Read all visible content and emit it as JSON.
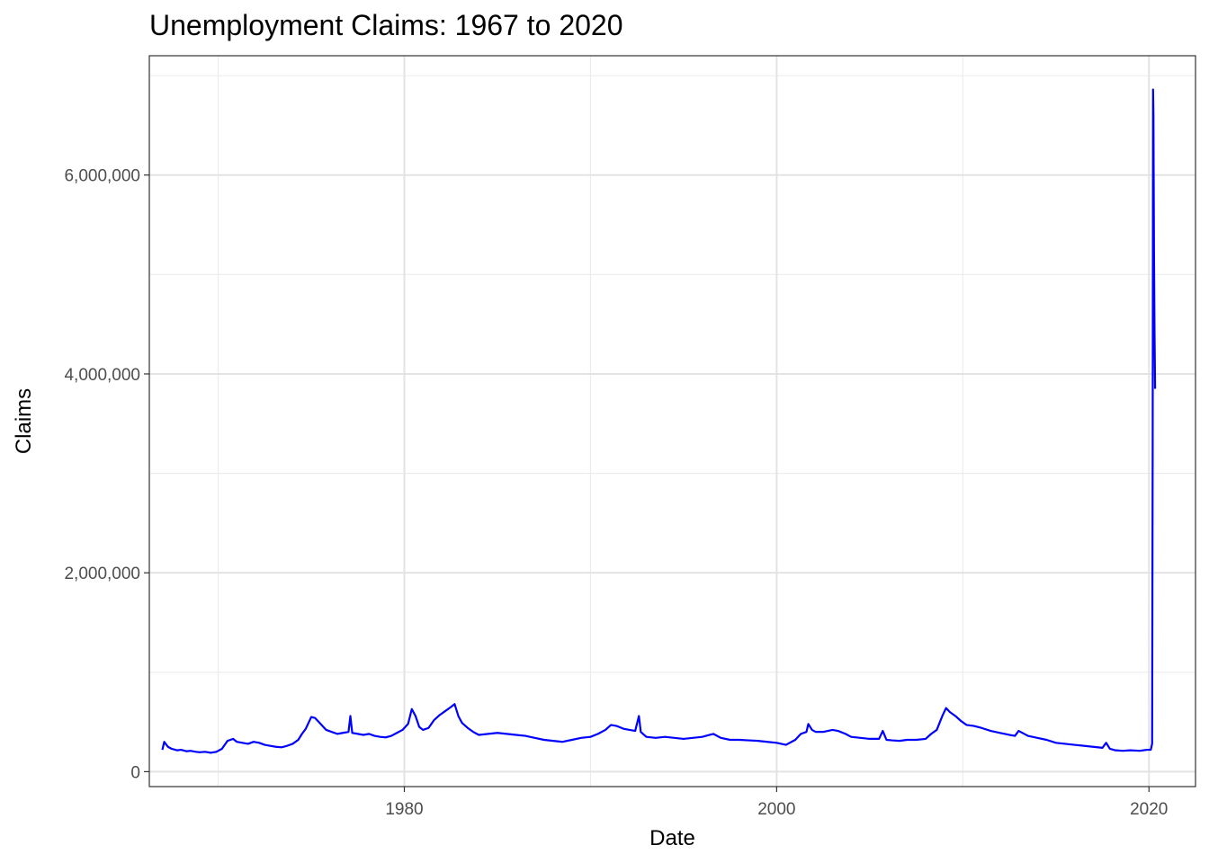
{
  "chart_data": {
    "type": "line",
    "title": "Unemployment Claims: 1967 to 2020",
    "xlabel": "Date",
    "ylabel": "Claims",
    "x_ticks": [
      "1980",
      "2000",
      "2020"
    ],
    "y_ticks": [
      "0",
      "2,000,000",
      "4,000,000",
      "6,000,000"
    ],
    "xlim": [
      1966.3,
      2022.5
    ],
    "ylim": [
      -150000,
      7200000
    ],
    "grid": true,
    "legend": "none",
    "line_color": "#0000ff",
    "series": [
      {
        "x": [
          1967.0,
          1967.1,
          1967.3,
          1967.5,
          1967.8,
          1968.0,
          1968.3,
          1968.5,
          1968.8,
          1969.0,
          1969.3,
          1969.6,
          1969.9,
          1970.2,
          1970.5,
          1970.8,
          1971.0,
          1971.3,
          1971.6,
          1971.9,
          1972.2,
          1972.5,
          1972.8,
          1973.1,
          1973.4,
          1973.7,
          1974.0,
          1974.3,
          1974.5,
          1974.7,
          1975.0,
          1975.2,
          1975.5,
          1975.8,
          1976.1,
          1976.4,
          1976.7,
          1977.0,
          1977.1,
          1977.2,
          1977.5,
          1977.8,
          1978.1,
          1978.4,
          1978.7,
          1979.0,
          1979.3,
          1979.6,
          1979.9,
          1980.2,
          1980.4,
          1980.6,
          1980.8,
          1981.0,
          1981.3,
          1981.6,
          1981.9,
          1982.2,
          1982.5,
          1982.7,
          1982.9,
          1983.1,
          1983.4,
          1983.7,
          1984.0,
          1984.5,
          1985.0,
          1985.5,
          1986.0,
          1986.5,
          1987.0,
          1987.5,
          1988.0,
          1988.5,
          1989.0,
          1989.5,
          1990.0,
          1990.4,
          1990.8,
          1991.1,
          1991.4,
          1991.8,
          1992.1,
          1992.4,
          1992.6,
          1992.7,
          1993.0,
          1993.5,
          1994.0,
          1994.5,
          1995.0,
          1995.5,
          1996.0,
          1996.4,
          1996.6,
          1997.0,
          1997.5,
          1998.0,
          1998.5,
          1999.0,
          1999.5,
          2000.0,
          2000.5,
          2001.0,
          2001.3,
          2001.6,
          2001.7,
          2001.9,
          2002.1,
          2002.5,
          2003.0,
          2003.3,
          2003.7,
          2004.0,
          2004.5,
          2005.0,
          2005.5,
          2005.7,
          2005.9,
          2006.2,
          2006.6,
          2007.0,
          2007.5,
          2008.0,
          2008.3,
          2008.6,
          2008.9,
          2009.1,
          2009.3,
          2009.6,
          2009.9,
          2010.2,
          2010.6,
          2011.0,
          2011.5,
          2012.0,
          2012.5,
          2012.8,
          2013.0,
          2013.5,
          2014.0,
          2014.5,
          2015.0,
          2015.5,
          2016.0,
          2016.5,
          2017.0,
          2017.5,
          2017.7,
          2017.9,
          2018.2,
          2018.6,
          2019.0,
          2019.5,
          2019.9,
          2020.1,
          2020.17,
          2020.2,
          2020.22,
          2020.24,
          2020.27,
          2020.3,
          2020.33
        ],
        "values": [
          220000,
          300000,
          250000,
          230000,
          215000,
          220000,
          205000,
          210000,
          200000,
          195000,
          200000,
          190000,
          200000,
          230000,
          310000,
          330000,
          300000,
          290000,
          280000,
          300000,
          290000,
          270000,
          260000,
          250000,
          245000,
          260000,
          280000,
          320000,
          380000,
          430000,
          550000,
          540000,
          480000,
          420000,
          400000,
          380000,
          390000,
          400000,
          560000,
          390000,
          380000,
          370000,
          380000,
          360000,
          350000,
          345000,
          360000,
          390000,
          420000,
          480000,
          630000,
          560000,
          450000,
          420000,
          440000,
          520000,
          570000,
          610000,
          650000,
          680000,
          560000,
          490000,
          440000,
          400000,
          370000,
          380000,
          390000,
          380000,
          370000,
          360000,
          340000,
          320000,
          310000,
          300000,
          320000,
          340000,
          350000,
          380000,
          420000,
          470000,
          460000,
          430000,
          420000,
          410000,
          560000,
          400000,
          350000,
          340000,
          350000,
          340000,
          330000,
          340000,
          350000,
          370000,
          380000,
          340000,
          320000,
          320000,
          315000,
          310000,
          300000,
          290000,
          270000,
          320000,
          380000,
          400000,
          480000,
          420000,
          400000,
          400000,
          420000,
          410000,
          380000,
          350000,
          340000,
          330000,
          330000,
          410000,
          320000,
          315000,
          310000,
          320000,
          320000,
          330000,
          380000,
          420000,
          560000,
          640000,
          600000,
          560000,
          510000,
          470000,
          460000,
          440000,
          410000,
          390000,
          370000,
          360000,
          410000,
          360000,
          340000,
          320000,
          290000,
          280000,
          270000,
          260000,
          250000,
          240000,
          290000,
          230000,
          215000,
          210000,
          215000,
          210000,
          220000,
          220000,
          282000,
          3300000,
          6860000,
          6600000,
          5250000,
          4400000,
          3850000
        ]
      }
    ]
  }
}
